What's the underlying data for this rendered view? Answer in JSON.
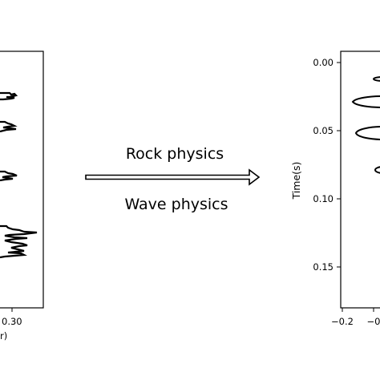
{
  "left_panel": {
    "x_tick_labels": [
      "0.30"
    ],
    "x_axis_label_fragment": "r)"
  },
  "arrow": {
    "top_label": "Rock physics",
    "bottom_label": "Wave physics"
  },
  "right_panel": {
    "y_axis_label": "Time(s)",
    "y_tick_labels": [
      "0.00",
      "0.05",
      "0.10",
      "0.15"
    ],
    "x_tick_labels": [
      "−0.2",
      "−0"
    ]
  },
  "chart_data": [
    {
      "type": "line",
      "description_role": "left log trace (partially visible)",
      "x_ticks": [
        0.3
      ],
      "x_label": "r)"
    },
    {
      "type": "line",
      "description_role": "right seismic trace (partially visible)",
      "y_ticks": [
        0.0,
        0.05,
        0.1,
        0.15
      ],
      "x_ticks": [
        -0.2,
        0
      ],
      "ylabel": "Time(s)"
    }
  ],
  "colors": {
    "line": "#000000",
    "axis": "#000000",
    "background": "#ffffff"
  }
}
